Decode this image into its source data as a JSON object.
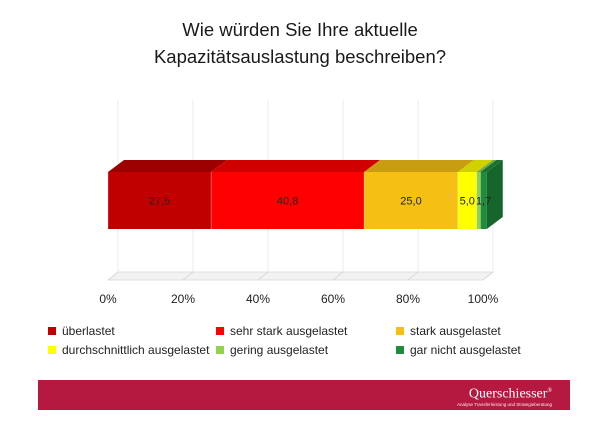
{
  "title_line1": "Wie würden Sie Ihre aktuelle",
  "title_line2": "Kapazitätsauslastung beschreiben?",
  "chart_data": {
    "type": "bar",
    "orientation": "horizontal-stacked-100",
    "title": "Wie würden Sie Ihre aktuelle Kapazitätsauslastung beschreiben?",
    "xlim": [
      0,
      100
    ],
    "ticks": [
      "0%",
      "20%",
      "40%",
      "60%",
      "80%",
      "100%"
    ],
    "tick_values": [
      0,
      20,
      40,
      60,
      80,
      100
    ],
    "series": [
      {
        "name": "überlastet",
        "value": 27.5,
        "label": "27,5",
        "color": "#c00000"
      },
      {
        "name": "sehr stark ausgelastet",
        "value": 40.8,
        "label": "40,8",
        "color": "#ff0000"
      },
      {
        "name": "stark ausgelastet",
        "value": 25.0,
        "label": "25,0",
        "color": "#f5c013"
      },
      {
        "name": "durchschnittlich ausgelastet",
        "value": 5.0,
        "label": "5,0",
        "color": "#ffff00"
      },
      {
        "name": "gering ausgelastet",
        "value": 1.0,
        "label": "",
        "color": "#92d050"
      },
      {
        "name": "gar nicht ausgelastet",
        "value": 1.7,
        "label": "1,7",
        "color": "#1e8c3a"
      }
    ],
    "legend_position": "bottom"
  },
  "footer": {
    "color": "#b5193f",
    "logo_text": "Querschiesser",
    "logo_mark": "®",
    "logo_subtitle": "Analyse Transferleistung und Strategieberatung"
  }
}
